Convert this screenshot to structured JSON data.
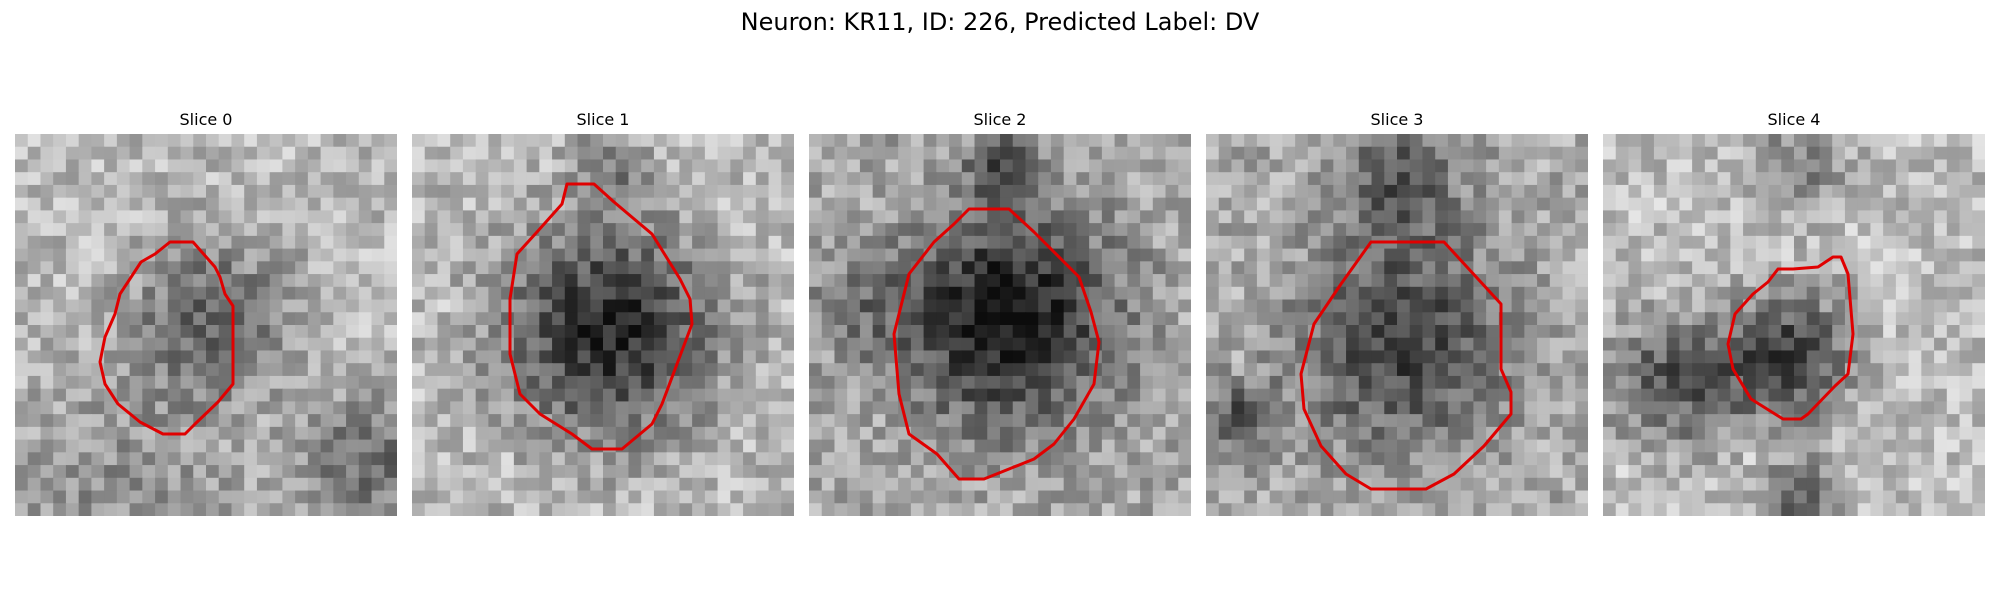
{
  "figure": {
    "title": "Neuron: KR11, ID: 226, Predicted Label: DV"
  },
  "colors": {
    "contour": "#e00000",
    "background": "#ffffff"
  },
  "panels": [
    {
      "title": "Slice 0"
    },
    {
      "title": "Slice 1"
    },
    {
      "title": "Slice 2"
    },
    {
      "title": "Slice 3"
    },
    {
      "title": "Slice 4"
    }
  ]
}
